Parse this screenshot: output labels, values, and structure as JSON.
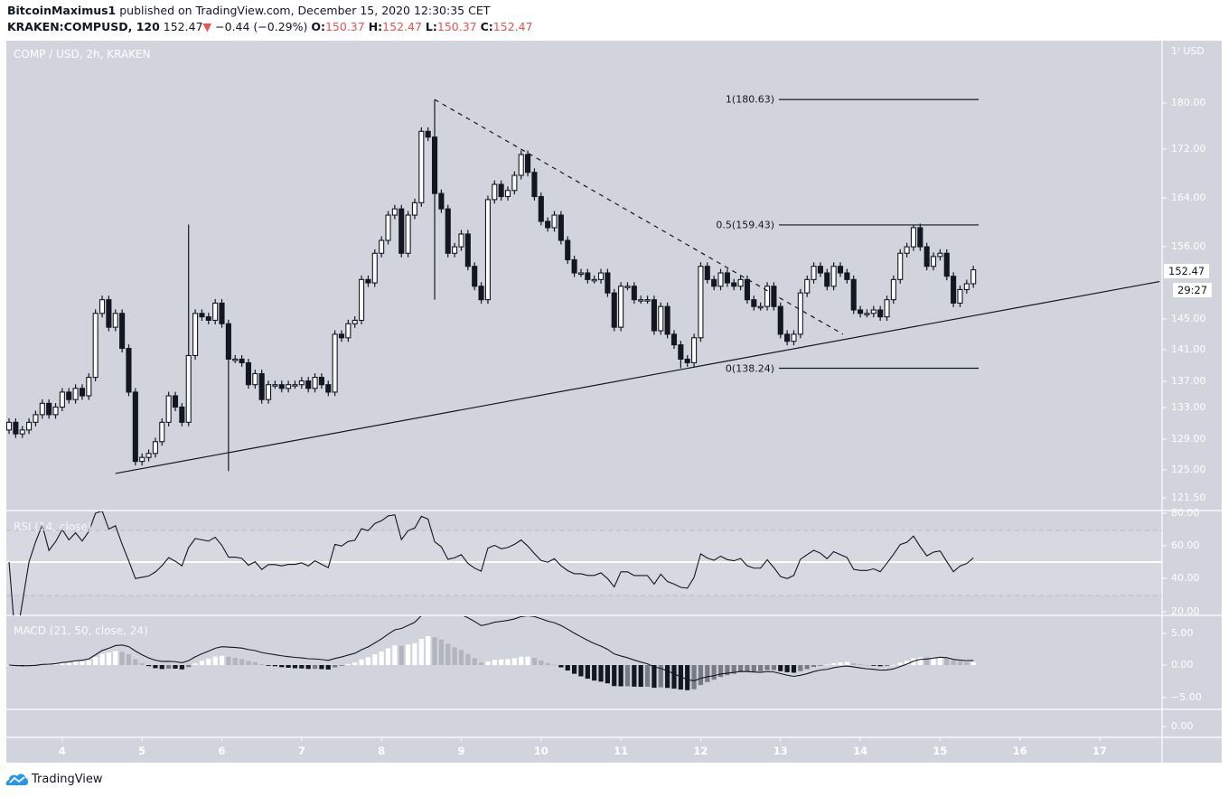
{
  "header": {
    "publisher": "BitcoinMaximus1",
    "published_text": "published on TradingView.com, December 15, 2020 12:30:35 CET",
    "symbol": "KRAKEN:COMPUSD, 120",
    "last": "152.47",
    "change": "−0.44 (−0.29%)",
    "change_direction_icon": "triangle-down-icon",
    "o_label": "O:",
    "o": "150.37",
    "h_label": "H:",
    "h": "152.47",
    "l_label": "L:",
    "l": "150.37",
    "c_label": "C:",
    "c": "152.47"
  },
  "pane_title": "COMP / USD, 2h, KRAKEN",
  "rsi_title": "RSI (14, close)",
  "macd_title": "MACD (21, 50, close, 24)",
  "price_tag": "152.47",
  "countdown_tag": "29:27",
  "price_axis": {
    "unit": "USD",
    "top_label": "1ʳ",
    "ticks": [
      "180.00",
      "172.00",
      "164.00",
      "156.00",
      "145.00",
      "141.00",
      "137.00",
      "133.00",
      "129.00",
      "125.00",
      "121.50"
    ]
  },
  "rsi_axis": [
    "80.00",
    "60.00",
    "40.00",
    "20.00"
  ],
  "macd_axis": [
    "5.00",
    "0.00",
    "−5.00"
  ],
  "extra_axis": [
    "0.00"
  ],
  "time_axis": [
    "4",
    "5",
    "6",
    "7",
    "8",
    "9",
    "10",
    "11",
    "12",
    "13",
    "14",
    "15",
    "16",
    "17"
  ],
  "fib_labels": [
    "1(180.63)",
    "0.5(159.43)",
    "0(138.24)"
  ],
  "footer": {
    "brand": "TradingView",
    "logo_icon": "tradingview-cloud-icon"
  },
  "colors": {
    "background": "#d1d4dc",
    "up_candle": "#ffffff",
    "down_candle": "#131722",
    "down_arrow": "#ef5350",
    "brand": "#2196f3"
  },
  "chart_data": {
    "type": "candlestick",
    "symbol": "COMP / USD",
    "interval": "2h",
    "scale": "log",
    "ylim": [
      121.5,
      184
    ],
    "x_ticks": [
      "4",
      "5",
      "6",
      "7",
      "8",
      "9",
      "10",
      "11",
      "12",
      "13",
      "14",
      "15",
      "16",
      "17"
    ],
    "closes": [
      131,
      129.5,
      130,
      131,
      132,
      133.5,
      132,
      133,
      135,
      134,
      135.5,
      134.5,
      137,
      146,
      148,
      144,
      146,
      141,
      135,
      126,
      126.5,
      127,
      128.5,
      131,
      134.5,
      133,
      131,
      140,
      146,
      145.5,
      145,
      147.5,
      144.5,
      139.5,
      139.5,
      139,
      136,
      137.5,
      134,
      136,
      136,
      135.5,
      136,
      136,
      136.5,
      135.5,
      137,
      136,
      135,
      143,
      142.5,
      144.5,
      145,
      151,
      150.5,
      155,
      157,
      161,
      162,
      155,
      161,
      163,
      175,
      174,
      164.5,
      162,
      155,
      156,
      158,
      153,
      150,
      148,
      163.5,
      166,
      164,
      165,
      167.5,
      171,
      168,
      164,
      160,
      159,
      161,
      157,
      154,
      152,
      152,
      151,
      151,
      152,
      149,
      144,
      150,
      150,
      148,
      148,
      148,
      143.5,
      147,
      143,
      141.5,
      139.5,
      139,
      142.5,
      153,
      151,
      150,
      152,
      150.5,
      150,
      151,
      148,
      147,
      147,
      150,
      147,
      143,
      142,
      143,
      149,
      151,
      153,
      152,
      150,
      153,
      152,
      151,
      146.5,
      146,
      146,
      146.5,
      145.5,
      148,
      151,
      155,
      156,
      159,
      156,
      153,
      154.5,
      155,
      151.5,
      147.5,
      149.5,
      150.37,
      152.47
    ],
    "wick_extremes": [
      {
        "candle": 27,
        "high": 159.5
      },
      {
        "candle": 33,
        "low": 124.8
      },
      {
        "candle": 64,
        "high": 180.63,
        "low": 148
      },
      {
        "candle": 101,
        "low": 138.24
      },
      {
        "candle": 136,
        "high": 159.43
      }
    ],
    "trendlines": [
      {
        "style": "solid",
        "from": {
          "candle": 16,
          "price": 124.5
        },
        "to": {
          "candle": 173,
          "price": 150.7
        }
      },
      {
        "style": "dashed",
        "from": {
          "candle": 64,
          "price": 180.63
        },
        "to": {
          "candle": 125.4,
          "price": 143.0
        }
      }
    ],
    "fib_levels": [
      {
        "level": 1,
        "price": 180.63
      },
      {
        "level": 0.5,
        "price": 159.43
      },
      {
        "level": 0,
        "price": 138.24
      }
    ],
    "indicators": [
      {
        "name": "RSI",
        "params": [
          14,
          "close"
        ],
        "ylim": [
          20,
          80
        ],
        "bands": [
          70,
          50,
          30
        ]
      },
      {
        "name": "MACD",
        "params": [
          21,
          50,
          "close",
          24
        ],
        "ylim": [
          -7,
          7.5
        ]
      }
    ]
  }
}
